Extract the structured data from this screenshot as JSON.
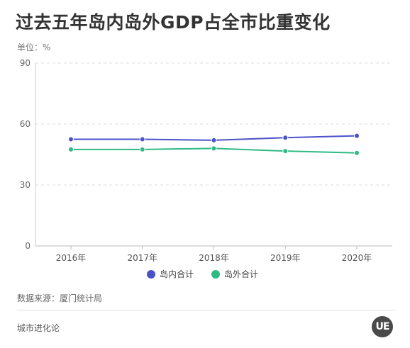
{
  "header": {
    "title": "过去五年岛内岛外GDP占全市比重变化",
    "unit": "单位：%"
  },
  "chart_data": {
    "type": "line",
    "title": "过去五年岛内岛外GDP占全市比重变化",
    "xlabel": "",
    "ylabel": "",
    "categories": [
      "2016年",
      "2017年",
      "2018年",
      "2019年",
      "2020年"
    ],
    "ylim": [
      0,
      90
    ],
    "yticks": [
      0,
      30,
      60,
      90
    ],
    "grid": true,
    "legend_position": "bottom",
    "series": [
      {
        "name": "岛内合计",
        "color": "#4a52c9",
        "values": [
          52.5,
          52.5,
          52.0,
          53.3,
          54.2
        ]
      },
      {
        "name": "岛外合计",
        "color": "#2dbb84",
        "values": [
          47.5,
          47.5,
          48.0,
          46.7,
          45.8
        ]
      }
    ]
  },
  "footer": {
    "source": "数据来源：厦门统计局",
    "brand": "城市进化论",
    "logo_text": "UE"
  }
}
